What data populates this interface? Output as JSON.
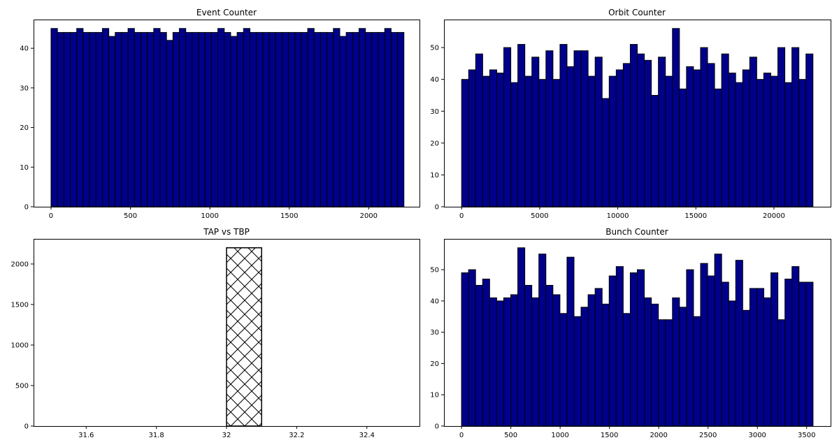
{
  "colors": {
    "bar_fill": "#00008b",
    "bar_edge": "#000000",
    "hatch_fill": "#ffffff"
  },
  "chart_data": [
    {
      "type": "bar",
      "title": "Event Counter",
      "xlabel": "",
      "ylabel": "",
      "grid": false,
      "bin_width": 40.4,
      "xlim": [
        -110,
        2320
      ],
      "ylim": [
        0,
        47.25
      ],
      "x_ticks": [
        0,
        500,
        1000,
        1500,
        2000
      ],
      "y_ticks": [
        0,
        10,
        20,
        30,
        40
      ],
      "x": [
        0,
        40.4,
        80.8,
        121.2,
        161.6,
        202,
        242.4,
        282.8,
        323.2,
        363.6,
        404,
        444.4,
        484.8,
        525.2,
        565.6,
        606,
        646.4,
        686.8,
        727.2,
        767.6,
        808,
        848.4,
        888.8,
        929.2,
        969.6,
        1010,
        1050.4,
        1090.8,
        1131.2,
        1171.6,
        1212,
        1252.4,
        1292.8,
        1333.2,
        1373.6,
        1414,
        1454.4,
        1494.8,
        1535.2,
        1575.6,
        1616,
        1656.4,
        1696.8,
        1737.2,
        1777.6,
        1818,
        1858.4,
        1898.8,
        1939.2,
        1979.6,
        2020,
        2060.4,
        2100.8,
        2141.2,
        2181.6
      ],
      "values": [
        45,
        44,
        44,
        44,
        45,
        44,
        44,
        44,
        45,
        43,
        44,
        44,
        45,
        44,
        44,
        44,
        45,
        44,
        42,
        44,
        45,
        44,
        44,
        44,
        44,
        44,
        45,
        44,
        43,
        44,
        45,
        44,
        44,
        44,
        44,
        44,
        44,
        44,
        44,
        44,
        45,
        44,
        44,
        44,
        45,
        43,
        44,
        44,
        45,
        44,
        44,
        44,
        45,
        44,
        44
      ]
    },
    {
      "type": "bar",
      "title": "Orbit Counter",
      "xlabel": "",
      "ylabel": "",
      "grid": false,
      "bin_width": 450,
      "xlim": [
        -1130,
        23630
      ],
      "ylim": [
        0,
        58.8
      ],
      "x_ticks": [
        0,
        5000,
        10000,
        15000,
        20000
      ],
      "y_ticks": [
        0,
        10,
        20,
        30,
        40,
        50
      ],
      "x": [
        0,
        450,
        900,
        1350,
        1800,
        2250,
        2700,
        3150,
        3600,
        4050,
        4500,
        4950,
        5400,
        5850,
        6300,
        6750,
        7200,
        7650,
        8100,
        8550,
        9000,
        9450,
        9900,
        10350,
        10800,
        11250,
        11700,
        12150,
        12600,
        13050,
        13500,
        13950,
        14400,
        14850,
        15300,
        15750,
        16200,
        16650,
        17100,
        17550,
        18000,
        18450,
        18900,
        19350,
        19800,
        20250,
        20700,
        21150,
        21600,
        22050
      ],
      "values": [
        40,
        43,
        48,
        41,
        43,
        42,
        50,
        39,
        51,
        41,
        47,
        40,
        49,
        40,
        51,
        44,
        49,
        49,
        41,
        47,
        34,
        41,
        43,
        45,
        51,
        48,
        46,
        35,
        47,
        41,
        56,
        37,
        44,
        43,
        50,
        45,
        37,
        48,
        42,
        39,
        43,
        47,
        40,
        42,
        41,
        50,
        39,
        50,
        40,
        48
      ]
    },
    {
      "type": "bar",
      "title": "TAP vs TBP",
      "xlabel": "",
      "ylabel": "",
      "grid": false,
      "hatch": "cross",
      "bin_width": 0.1,
      "xlim": [
        31.45,
        32.55
      ],
      "ylim": [
        0,
        2310
      ],
      "x_ticks": [
        31.6,
        31.8,
        32.0,
        32.2,
        32.4
      ],
      "y_ticks": [
        0,
        500,
        1000,
        1500,
        2000
      ],
      "x": [
        31.5,
        31.6,
        31.7,
        31.8,
        31.9,
        32.0,
        32.1,
        32.2,
        32.3,
        32.4
      ],
      "values": [
        0,
        0,
        0,
        0,
        0,
        2200,
        0,
        0,
        0,
        0
      ]
    },
    {
      "type": "bar",
      "title": "Bunch Counter",
      "xlabel": "",
      "ylabel": "",
      "grid": false,
      "bin_width": 71.3,
      "xlim": [
        -178,
        3743
      ],
      "ylim": [
        0,
        59.85
      ],
      "x_ticks": [
        0,
        500,
        1000,
        1500,
        2000,
        2500,
        3000,
        3500
      ],
      "y_ticks": [
        0,
        10,
        20,
        30,
        40,
        50
      ],
      "x": [
        0,
        71.3,
        142.6,
        213.9,
        285.2,
        356.5,
        427.8,
        499.1,
        570.4,
        641.7,
        713,
        784.3,
        855.6,
        926.9,
        998.2,
        1069.5,
        1140.8,
        1212.1,
        1283.4,
        1354.7,
        1426,
        1497.3,
        1568.6,
        1639.9,
        1711.2,
        1782.5,
        1853.8,
        1925.1,
        1996.4,
        2067.7,
        2139,
        2210.3,
        2281.6,
        2352.9,
        2424.2,
        2495.5,
        2566.8,
        2638.1,
        2709.4,
        2780.7,
        2852,
        2923.3,
        2994.6,
        3065.9,
        3137.2,
        3208.5,
        3279.8,
        3351.1,
        3422.4,
        3493.7
      ],
      "values": [
        49,
        50,
        45,
        47,
        41,
        40,
        41,
        42,
        57,
        45,
        41,
        55,
        45,
        42,
        36,
        54,
        35,
        38,
        42,
        44,
        39,
        48,
        51,
        36,
        49,
        50,
        41,
        39,
        34,
        34,
        41,
        38,
        50,
        35,
        52,
        48,
        55,
        46,
        40,
        53,
        37,
        44,
        44,
        41,
        49,
        34,
        47,
        51,
        46,
        46
      ]
    }
  ]
}
